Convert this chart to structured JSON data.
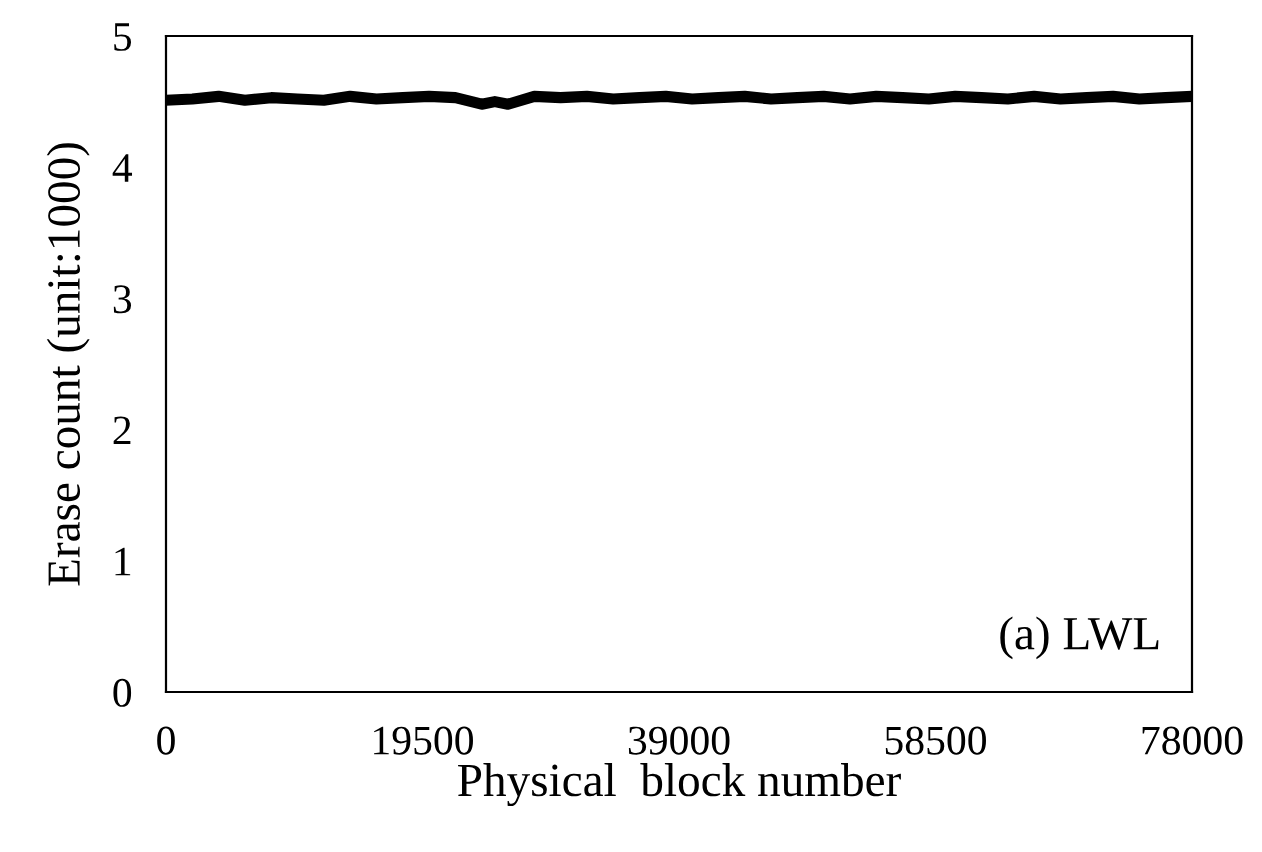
{
  "chart_data": {
    "type": "line",
    "xlabel": "Physical  block number",
    "ylabel": "Erase count (unit:1000)",
    "x": [
      0,
      2000,
      4000,
      6000,
      8000,
      10000,
      12000,
      14000,
      16000,
      18000,
      20000,
      22000,
      24000,
      25000,
      26000,
      28000,
      30000,
      32000,
      34000,
      36000,
      38000,
      40000,
      42000,
      44000,
      46000,
      48000,
      50000,
      52000,
      54000,
      56000,
      58000,
      60000,
      62000,
      64000,
      66000,
      68000,
      70000,
      72000,
      74000,
      76000,
      78000
    ],
    "series": [
      {
        "color": "#000000",
        "values": [
          4.51,
          4.52,
          4.54,
          4.51,
          4.53,
          4.52,
          4.51,
          4.54,
          4.52,
          4.53,
          4.54,
          4.53,
          4.48,
          4.5,
          4.48,
          4.54,
          4.53,
          4.54,
          4.52,
          4.53,
          4.54,
          4.52,
          4.53,
          4.54,
          4.52,
          4.53,
          4.54,
          4.52,
          4.54,
          4.53,
          4.52,
          4.54,
          4.53,
          4.52,
          4.54,
          4.52,
          4.53,
          4.54,
          4.52,
          4.53,
          4.54
        ]
      }
    ],
    "xlim": [
      0,
      78000
    ],
    "xticks": [
      0,
      19500,
      39000,
      58500,
      78000
    ],
    "ylim": [
      0,
      5
    ],
    "yticks": [
      0,
      1,
      2,
      3,
      4,
      5
    ],
    "annotations": [
      "(a) LWL"
    ],
    "grid": false,
    "legend": false,
    "marker": "none",
    "line_style": "solid"
  }
}
